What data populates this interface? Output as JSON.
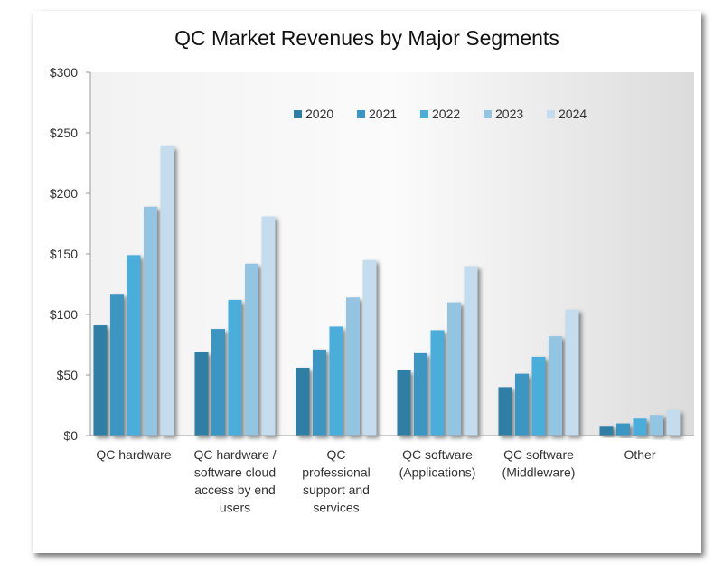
{
  "chart_data": {
    "type": "bar",
    "title": "QC Market Revenues by Major Segments",
    "xlabel": "",
    "ylabel": "",
    "ylim": [
      0,
      300
    ],
    "yticks": [
      "$0",
      "$50",
      "$100",
      "$150",
      "$200",
      "$250",
      "$300"
    ],
    "legend_position": "top-center",
    "grid": false,
    "categories": [
      [
        "QC hardware"
      ],
      [
        "QC hardware /",
        "software cloud",
        "access by end",
        "users"
      ],
      [
        "QC",
        "professional",
        "support and",
        "services"
      ],
      [
        "QC software",
        "(Applications)"
      ],
      [
        "QC software",
        "(Middleware)"
      ],
      [
        "Other"
      ]
    ],
    "series": [
      {
        "name": "2020",
        "color": "#2e7fa6",
        "values": [
          91,
          69,
          56,
          54,
          40,
          8
        ]
      },
      {
        "name": "2021",
        "color": "#3a96c4",
        "values": [
          117,
          88,
          71,
          68,
          51,
          10
        ]
      },
      {
        "name": "2022",
        "color": "#4aaedb",
        "values": [
          149,
          112,
          90,
          87,
          65,
          14
        ]
      },
      {
        "name": "2023",
        "color": "#93c5e2",
        "values": [
          189,
          142,
          114,
          110,
          82,
          17
        ]
      },
      {
        "name": "2024",
        "color": "#c3ddef",
        "values": [
          239,
          181,
          145,
          140,
          104,
          21
        ]
      }
    ]
  }
}
